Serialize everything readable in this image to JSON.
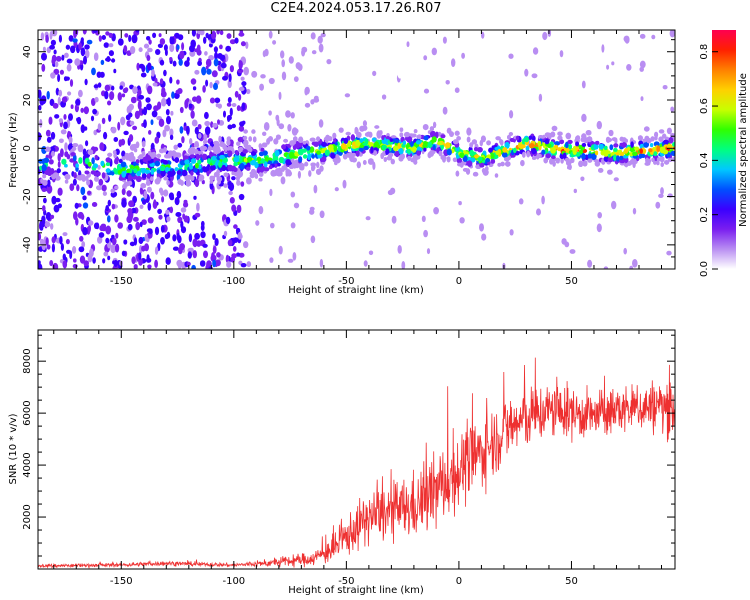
{
  "page": {
    "title": "C2E4.2024.053.17.26.R07"
  },
  "chart_data": [
    {
      "type": "heatmap",
      "name": "spectrogram",
      "xlabel": "Height of straight line (km)",
      "ylabel": "Frequency (Hz)",
      "xlim": [
        -187,
        96
      ],
      "ylim": [
        -50,
        49
      ],
      "xticks": [
        -150,
        -100,
        -50,
        0,
        50
      ],
      "xtick_labels": [
        "-150",
        "-100",
        "-50",
        "0",
        "50"
      ],
      "yticks": [
        -40,
        -20,
        0,
        20,
        40
      ],
      "ytick_labels": [
        "-40",
        "-20",
        "0",
        "20",
        "40"
      ],
      "ridge": {
        "x": [
          -187,
          -170,
          -150,
          -130,
          -110,
          -100,
          -90,
          -80,
          -70,
          -60,
          -50,
          -40,
          -30,
          -20,
          -12,
          -5,
          0,
          10,
          20,
          30,
          40,
          50,
          60,
          70,
          80,
          96
        ],
        "freq": [
          -7,
          -6,
          -9,
          -8,
          -6,
          -5,
          -5,
          -4,
          -2,
          -1,
          1,
          2,
          1,
          0,
          3,
          1,
          -2,
          -4,
          -1,
          2,
          0,
          -1,
          -1,
          -2,
          -1,
          0
        ]
      },
      "colorbar": {
        "label": "Normalized spectral amplitude",
        "range": [
          0.0,
          0.88
        ],
        "ticks": [
          0.0,
          0.2,
          0.4,
          0.6,
          0.8
        ],
        "tick_labels": [
          "0.0",
          "0.2",
          "0.4",
          "0.6",
          "0.8"
        ],
        "colors": [
          "#ffffff",
          "#b98ef2",
          "#7a1ef0",
          "#3a00ff",
          "#0050ff",
          "#00c8ff",
          "#00ff80",
          "#30ff00",
          "#c8ff00",
          "#ffd000",
          "#ff8000",
          "#ff2000",
          "#ff0050"
        ]
      }
    },
    {
      "type": "line",
      "name": "snr",
      "xlabel": "Height of straight line (km)",
      "ylabel": "SNR (10 * v/v)",
      "xlim": [
        -187,
        96
      ],
      "ylim": [
        0,
        9200
      ],
      "xticks": [
        -150,
        -100,
        -50,
        0,
        50
      ],
      "xtick_labels": [
        "-150",
        "-100",
        "-50",
        "0",
        "50"
      ],
      "yticks": [
        2000,
        4000,
        6000,
        8000
      ],
      "ytick_labels": [
        "2000",
        "4000",
        "6000",
        "8000"
      ],
      "color": "#ee3030",
      "envelope": {
        "x": [
          -187,
          -150,
          -130,
          -100,
          -85,
          -75,
          -65,
          -55,
          -48,
          -40,
          -30,
          -20,
          -10,
          0,
          10,
          20,
          30,
          40,
          50,
          60,
          70,
          80,
          90,
          96
        ],
        "mean": [
          120,
          160,
          220,
          150,
          220,
          300,
          400,
          800,
          1400,
          2000,
          2200,
          2400,
          3000,
          3800,
          4500,
          5300,
          5800,
          6100,
          6000,
          5900,
          6100,
          6200,
          6300,
          6100
        ],
        "spread": [
          80,
          80,
          100,
          80,
          150,
          250,
          300,
          600,
          900,
          1100,
          1200,
          1400,
          1600,
          1600,
          1500,
          1400,
          1300,
          1200,
          1100,
          1000,
          1000,
          1000,
          1200,
          1100
        ]
      }
    }
  ]
}
